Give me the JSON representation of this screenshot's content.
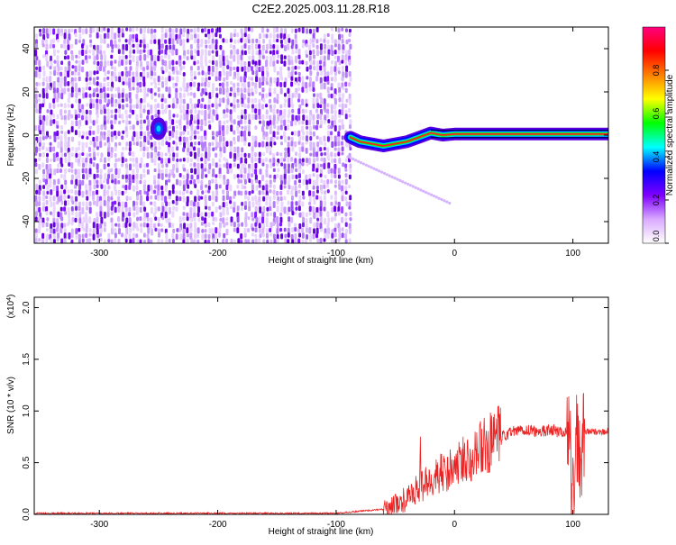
{
  "title": "C2E2.2025.003.11.28.R18",
  "chart_data": [
    {
      "type": "heatmap",
      "xlabel": "Height of straight line (km)",
      "ylabel": "Frequency (Hz)",
      "xlim": [
        -355,
        130
      ],
      "ylim": [
        -50,
        50
      ],
      "xticks": [
        -300,
        -200,
        -100,
        0,
        100
      ],
      "yticks": [
        -40,
        -20,
        0,
        20,
        40
      ],
      "colorbar": {
        "label": "Normalized spectral amplitude",
        "range": [
          0,
          1
        ],
        "ticks": [
          "0.0",
          "0.2",
          "0.4",
          "0.6",
          "0.8"
        ],
        "colors": [
          "#ffffff",
          "#d9a9ff",
          "#7f00ff",
          "#0000ff",
          "#00ffff",
          "#00ff00",
          "#ffff00",
          "#ff8000",
          "#ff0000",
          "#ff0080"
        ]
      },
      "features": {
        "noise_region_x": [
          -355,
          -88
        ],
        "signal_track": [
          [
            -88,
            -1
          ],
          [
            -80,
            -3
          ],
          [
            -70,
            -4
          ],
          [
            -60,
            -5
          ],
          [
            -50,
            -4
          ],
          [
            -40,
            -3
          ],
          [
            -30,
            -1
          ],
          [
            -20,
            1
          ],
          [
            -10,
            0
          ],
          [
            0,
            0.5
          ],
          [
            20,
            0.5
          ],
          [
            50,
            0.5
          ],
          [
            80,
            0.5
          ],
          [
            100,
            0.5
          ],
          [
            108,
            0.5
          ],
          [
            130,
            0.5
          ]
        ],
        "blob": [
          -250,
          3
        ]
      }
    },
    {
      "type": "line",
      "xlabel": "Height of straight line (km)",
      "ylabel": "SNR (10 * v/v)",
      "exponent_label": "(x10",
      "exponent_power": "4",
      "xlim": [
        -355,
        130
      ],
      "ylim": [
        0,
        2.1
      ],
      "xticks": [
        -300,
        -200,
        -100,
        0,
        100
      ],
      "yticks": [
        "0.0",
        "0.5",
        "1.0",
        "1.5",
        "2.0"
      ],
      "color": "#ee2222",
      "series": [
        {
          "x": [
            -355,
            -250,
            -100,
            -60,
            -40,
            -30,
            -20,
            -10,
            0,
            10,
            20,
            30,
            40,
            50,
            60,
            70,
            80,
            90,
            95,
            100,
            103,
            106,
            110,
            120,
            130
          ],
          "y": [
            0.01,
            0.01,
            0.01,
            0.05,
            0.15,
            0.25,
            0.35,
            0.4,
            0.45,
            0.55,
            0.62,
            0.68,
            0.75,
            0.8,
            0.82,
            0.8,
            0.82,
            0.8,
            0.78,
            0.3,
            0.7,
            0.4,
            0.8,
            0.8,
            0.8
          ]
        }
      ]
    }
  ]
}
